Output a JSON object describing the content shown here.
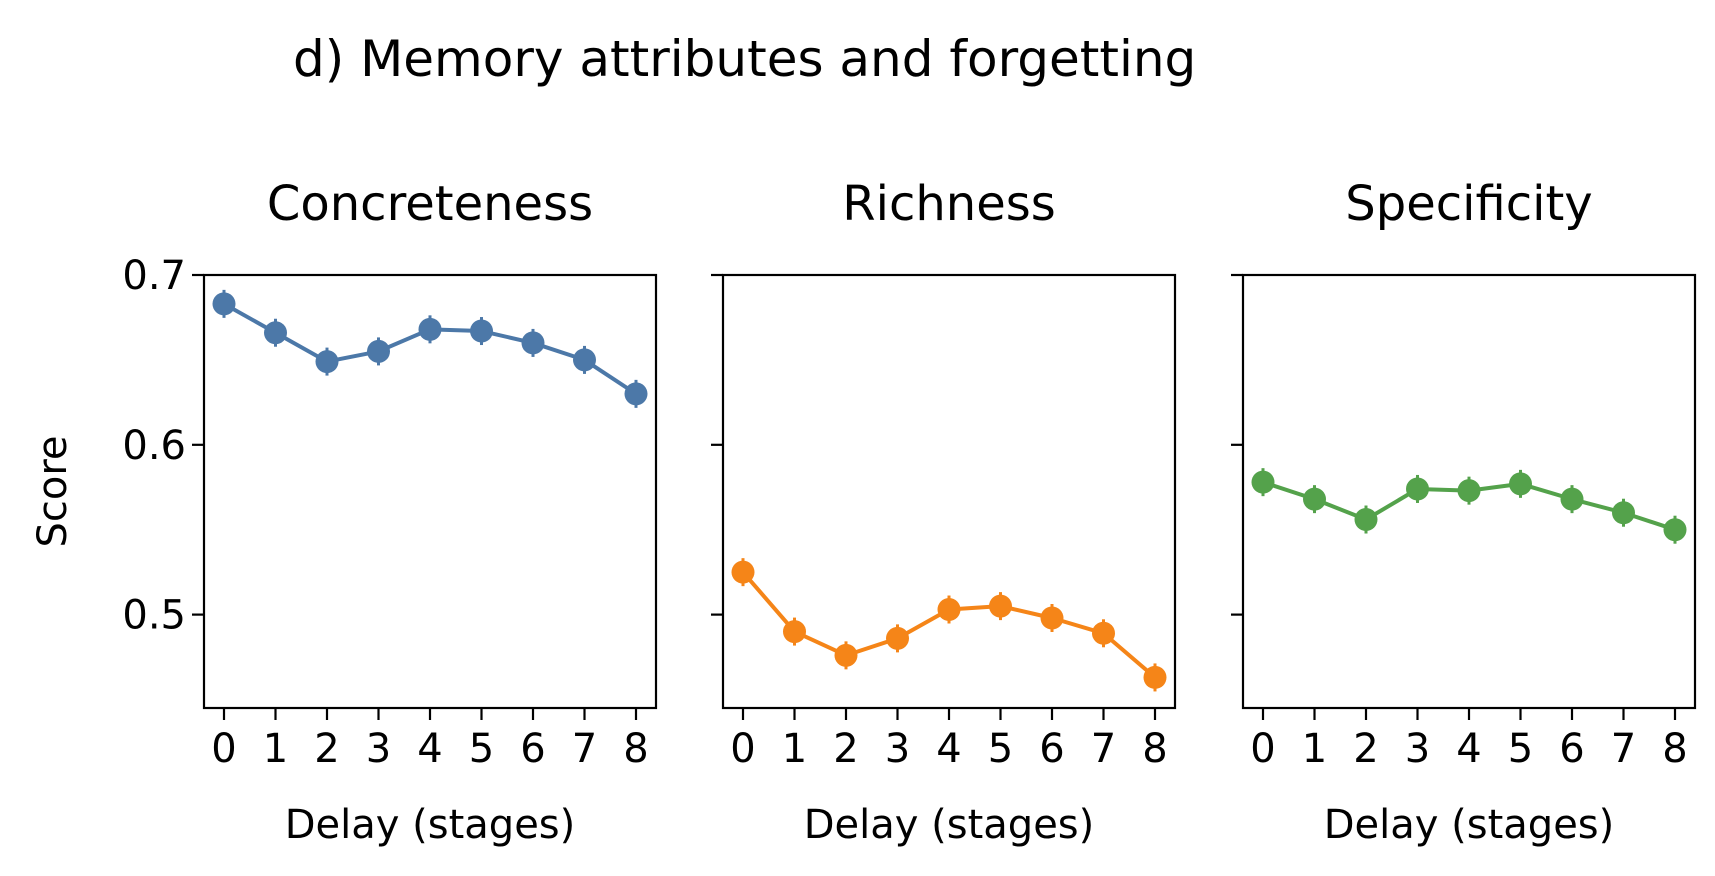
{
  "figure": {
    "title": "d)   Memory attributes and forgetting"
  },
  "chart_data": [
    {
      "type": "line",
      "title": "Concreteness",
      "xlabel": "Delay (stages)",
      "ylabel": "Score",
      "x": [
        0,
        1,
        2,
        3,
        4,
        5,
        6,
        7,
        8
      ],
      "xticks": [
        "0",
        "1",
        "2",
        "3",
        "4",
        "5",
        "6",
        "7",
        "8"
      ],
      "yticks": [
        "0.5",
        "0.6",
        "0.7"
      ],
      "ylim": [
        0.445,
        0.7
      ],
      "grid": false,
      "color": "#4c78a8",
      "values": [
        0.683,
        0.666,
        0.649,
        0.655,
        0.668,
        0.667,
        0.66,
        0.65,
        0.63
      ]
    },
    {
      "type": "line",
      "title": "Richness",
      "xlabel": "Delay (stages)",
      "ylabel": "",
      "x": [
        0,
        1,
        2,
        3,
        4,
        5,
        6,
        7,
        8
      ],
      "xticks": [
        "0",
        "1",
        "2",
        "3",
        "4",
        "5",
        "6",
        "7",
        "8"
      ],
      "yticks": [
        "",
        "",
        ""
      ],
      "ylim": [
        0.445,
        0.7
      ],
      "grid": false,
      "color": "#f58518",
      "values": [
        0.525,
        0.49,
        0.476,
        0.486,
        0.503,
        0.505,
        0.498,
        0.489,
        0.463
      ]
    },
    {
      "type": "line",
      "title": "Specificity",
      "xlabel": "Delay (stages)",
      "ylabel": "",
      "x": [
        0,
        1,
        2,
        3,
        4,
        5,
        6,
        7,
        8
      ],
      "xticks": [
        "0",
        "1",
        "2",
        "3",
        "4",
        "5",
        "6",
        "7",
        "8"
      ],
      "yticks": [
        "",
        "",
        ""
      ],
      "ylim": [
        0.445,
        0.7
      ],
      "grid": false,
      "color": "#54a24b",
      "values": [
        0.578,
        0.568,
        0.556,
        0.574,
        0.573,
        0.577,
        0.568,
        0.56,
        0.55
      ]
    }
  ]
}
